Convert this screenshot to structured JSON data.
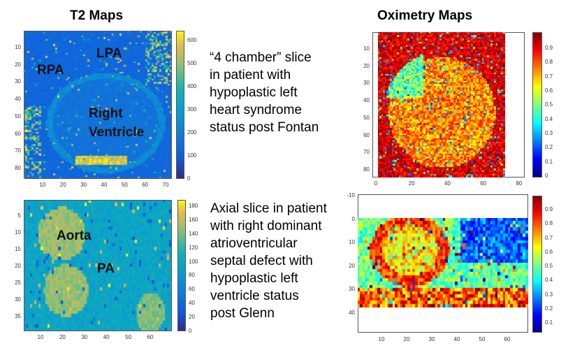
{
  "headings": {
    "left": "T2 Maps",
    "right": "Oximetry Maps"
  },
  "descriptions": {
    "top": [
      "“4 chamber” slice",
      "in patient with",
      "hypoplastic left",
      "heart syndrome",
      "status post Fontan"
    ],
    "bottom": [
      "Axial slice in patient",
      "with right dominant",
      "atrioventricular",
      "septal defect with",
      "hypoplastic left",
      "ventricle status",
      "post Glenn"
    ]
  },
  "panels": {
    "t2_top": {
      "labels": [
        "LPA",
        "RPA",
        "Right",
        "Ventricle"
      ],
      "yticks": [
        "10",
        "20",
        "30",
        "40",
        "50",
        "60",
        "70",
        "80"
      ],
      "xticks": [
        "10",
        "20",
        "30",
        "40",
        "50",
        "60",
        "70"
      ],
      "cbar_ticks": [
        "600",
        "500",
        "400",
        "300",
        "200",
        "100",
        "0"
      ],
      "colormap": "parula"
    },
    "t2_bottom": {
      "labels": [
        "Aorta",
        "PA"
      ],
      "yticks": [
        "5",
        "10",
        "15",
        "20",
        "25",
        "30",
        "35"
      ],
      "xticks": [
        "10",
        "20",
        "30",
        "40",
        "50",
        "60"
      ],
      "cbar_ticks": [
        "180",
        "160",
        "140",
        "120",
        "100",
        "80",
        "60",
        "40",
        "20",
        "0"
      ],
      "colormap": "parula"
    },
    "oxi_top": {
      "yticks": [
        "10",
        "20",
        "30",
        "40",
        "50",
        "60",
        "70",
        "80"
      ],
      "xticks": [
        "0",
        "20",
        "40",
        "60",
        "80"
      ],
      "cbar_ticks": [
        "0.9",
        "0.8",
        "0.7",
        "0.6",
        "0.5",
        "0.4",
        "0.3",
        "0.2",
        "0.1",
        "0"
      ],
      "colormap": "jet"
    },
    "oxi_bottom": {
      "yticks": [
        "-10",
        "0",
        "10",
        "20",
        "30",
        "40"
      ],
      "xticks": [
        "10",
        "20",
        "30",
        "40",
        "50",
        "60"
      ],
      "cbar_ticks": [
        "0.9",
        "0.8",
        "0.7",
        "0.6",
        "0.5",
        "0.4",
        "0.3",
        "0.2",
        "0.1"
      ],
      "colormap": "jet"
    }
  }
}
